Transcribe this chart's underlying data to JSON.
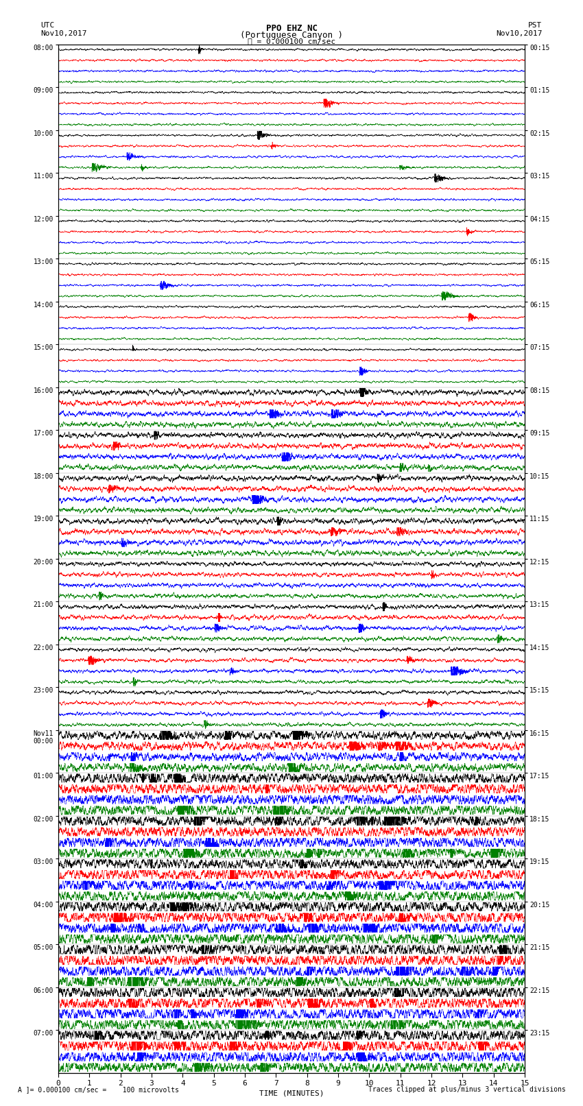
{
  "title_line1": "PPO EHZ NC",
  "title_line2": "(Portuguese Canyon )",
  "title_line3": "I = 0.000100 cm/sec",
  "left_header": "UTC",
  "left_date": "Nov10,2017",
  "right_header": "PST",
  "right_date": "Nov10,2017",
  "xlabel": "TIME (MINUTES)",
  "footer_left": "A ]= 0.000100 cm/sec =    100 microvolts",
  "footer_right": "Traces clipped at plus/minus 3 vertical divisions",
  "trace_colors": [
    "black",
    "red",
    "blue",
    "green"
  ],
  "n_rows": 96,
  "xlim": [
    0,
    15
  ],
  "bg_color": "white",
  "utc_hour_labels": [
    "08:00",
    "09:00",
    "10:00",
    "11:00",
    "12:00",
    "13:00",
    "14:00",
    "15:00",
    "16:00",
    "17:00",
    "18:00",
    "19:00",
    "20:00",
    "21:00",
    "22:00",
    "23:00",
    "Nov11\n00:00",
    "01:00",
    "02:00",
    "03:00",
    "04:00",
    "05:00",
    "06:00",
    "07:00"
  ],
  "pst_hour_labels": [
    "00:15",
    "01:15",
    "02:15",
    "03:15",
    "04:15",
    "05:15",
    "06:15",
    "07:15",
    "08:15",
    "09:15",
    "10:15",
    "11:15",
    "12:15",
    "13:15",
    "14:15",
    "15:15",
    "16:15",
    "17:15",
    "18:15",
    "19:15",
    "20:15",
    "21:15",
    "22:15",
    "23:15"
  ],
  "seed": 42,
  "n_pts": 4500,
  "row_amplitude": 0.42,
  "base_noise": 0.04,
  "linewidth": 0.4
}
